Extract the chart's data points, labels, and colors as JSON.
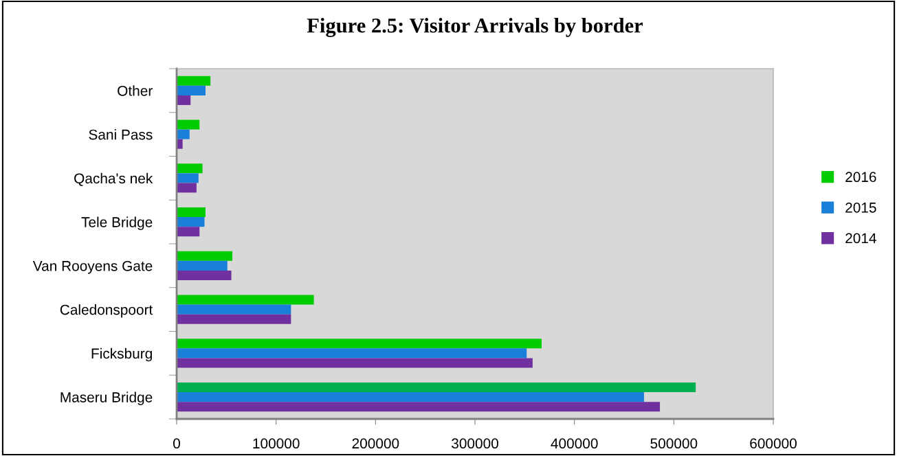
{
  "chart_data": {
    "type": "bar",
    "orientation": "horizontal",
    "title": "Figure 2.5: Visitor Arrivals by border",
    "categories": [
      "Other",
      "Sani Pass",
      "Qacha's nek",
      "Tele Bridge",
      "Van Rooyens Gate",
      "Caledonspoort",
      "Ficksburg",
      "Maseru Bridge"
    ],
    "series": [
      {
        "name": "2016",
        "color": "#00cc00",
        "colors": [
          "#00cc00",
          "#00cc00",
          "#00cc00",
          "#00cc00",
          "#00cc00",
          "#00cc00",
          "#00cc00",
          "#00b050"
        ],
        "values": [
          34000,
          23000,
          26000,
          29000,
          56000,
          138000,
          367000,
          522000
        ]
      },
      {
        "name": "2015",
        "color": "#1a7fd9",
        "values": [
          29000,
          13000,
          22000,
          28000,
          51000,
          115000,
          352000,
          470000
        ]
      },
      {
        "name": "2014",
        "color": "#7030a0",
        "values": [
          14000,
          6000,
          20000,
          23000,
          55000,
          115000,
          358000,
          486000
        ]
      }
    ],
    "xlim": [
      0,
      600000
    ],
    "xticks": [
      0,
      100000,
      200000,
      300000,
      400000,
      500000,
      600000
    ],
    "grid": false,
    "legend": "right"
  }
}
